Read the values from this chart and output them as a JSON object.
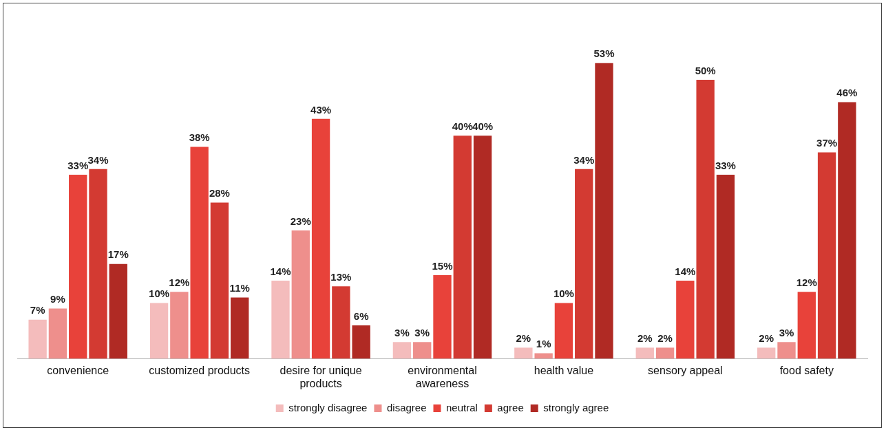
{
  "chart_data": {
    "type": "bar",
    "categories": [
      "convenience",
      "customized products",
      "desire for unique products",
      "environmental awareness",
      "health value",
      "sensory appeal",
      "food safety"
    ],
    "series": [
      {
        "name": "strongly disagree",
        "color": "#f4bcbc",
        "values": [
          7,
          10,
          14,
          3,
          2,
          2,
          2
        ],
        "value_labels": [
          "7%",
          "10%",
          "14%",
          "3%",
          "2%",
          "2%",
          "2%"
        ]
      },
      {
        "name": "disagree",
        "color": "#ee8f8c",
        "values": [
          9,
          12,
          23,
          3,
          1,
          2,
          3
        ],
        "value_labels": [
          "9%",
          "12%",
          "23%",
          "3%",
          "1%",
          "2%",
          "3%"
        ]
      },
      {
        "name": "neutral",
        "color": "#e8423a",
        "values": [
          33,
          38,
          43,
          15,
          10,
          14,
          12
        ],
        "value_labels": [
          "33%",
          "38%",
          "43%",
          "15%",
          "10%",
          "14%",
          "12%"
        ]
      },
      {
        "name": "agree",
        "color": "#d33a32",
        "values": [
          34,
          28,
          13,
          40,
          34,
          50,
          37
        ],
        "value_labels": [
          "34%",
          "28%",
          "13%",
          "40%",
          "34%",
          "50%",
          "37%"
        ]
      },
      {
        "name": "strongly agree",
        "color": "#b02a24",
        "values": [
          17,
          11,
          6,
          40,
          53,
          33,
          46
        ],
        "value_labels": [
          "17%",
          "11%",
          "6%",
          "40%",
          "53%",
          "33%",
          "46%"
        ]
      }
    ],
    "legend": "bottom",
    "grid": false,
    "tick_labels": "x"
  }
}
